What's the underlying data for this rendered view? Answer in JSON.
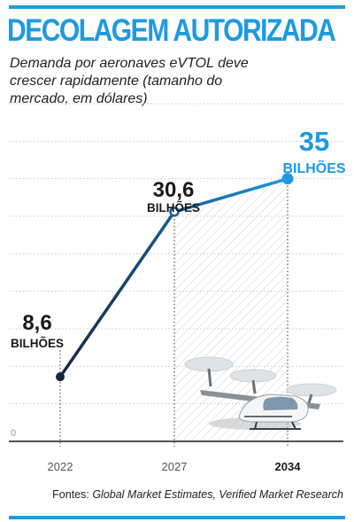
{
  "title": "DECOLAGEM AUTORIZADA",
  "subtitle": "Demanda por aeronaves eVTOL deve crescer rapidamente (tamanho do mercado, em dólares)",
  "source_prefix": "Fontes:",
  "source_names": "Global Market Estimates, Verified Market Research",
  "colors": {
    "accent": "#1e9be0",
    "dark": "#17263f",
    "grid": "#c8c8c8"
  },
  "chart_data": {
    "type": "line",
    "categories": [
      "2022",
      "2027",
      "2034"
    ],
    "values": [
      8.6,
      30.6,
      35
    ],
    "value_labels": [
      "8,6",
      "30,6",
      "35"
    ],
    "unit_label": "BILHÕES",
    "y_tick_labels": [
      "0"
    ],
    "ylim": [
      0,
      45
    ],
    "grid": true,
    "highlight_category": "2034",
    "title": "",
    "xlabel": "",
    "ylabel": ""
  }
}
